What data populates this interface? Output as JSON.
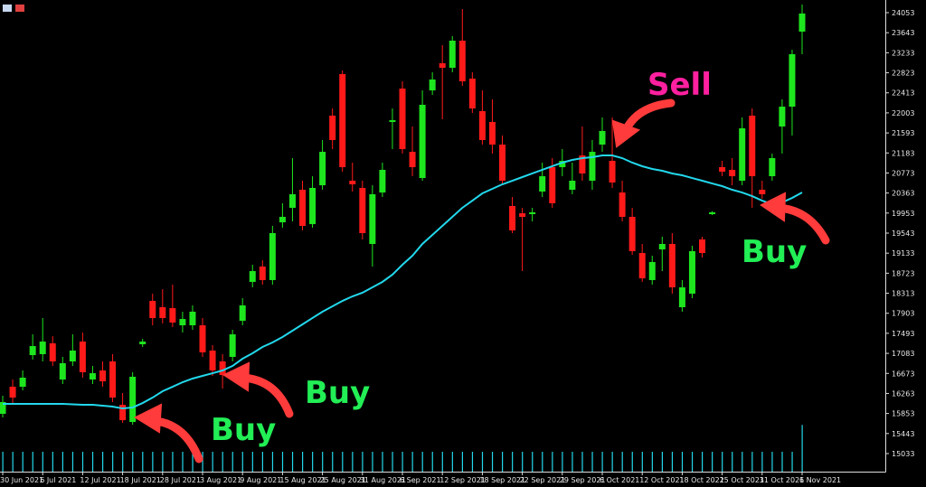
{
  "chart_data": {
    "type": "candlestick",
    "categories": [
      "30 Jun 2021",
      null,
      null,
      null,
      "6 Jul 2021",
      null,
      null,
      null,
      "12 Jul 2021",
      null,
      null,
      null,
      "18 Jul 2021",
      null,
      null,
      null,
      "28 Jul 2021",
      null,
      null,
      null,
      "3 Aug 2021",
      null,
      null,
      null,
      "9 Aug 2021",
      null,
      null,
      null,
      "15 Aug 2021",
      null,
      null,
      null,
      "25 Aug 2021",
      null,
      null,
      null,
      "31 Aug 2021",
      null,
      null,
      null,
      "6 Sep 2021",
      null,
      null,
      null,
      "12 Sep 2021",
      null,
      null,
      null,
      "18 Sep 2021",
      null,
      null,
      null,
      "22 Sep 2021",
      null,
      null,
      null,
      "29 Sep 2021",
      null,
      null,
      null,
      "6 Oct 2021",
      null,
      null,
      null,
      "12 Oct 2021",
      null,
      null,
      null,
      "18 Oct 2021",
      null,
      null,
      null,
      "25 Oct 2021",
      null,
      null,
      null,
      "31 Oct 2021",
      null,
      null,
      null,
      "6 Nov 2021"
    ],
    "open": [
      15846,
      16400,
      16400,
      17047,
      17066,
      17288,
      16548,
      16918,
      17324,
      16548,
      16733,
      16918,
      16030,
      15679,
      17269,
      18156,
      18027,
      18008,
      17657,
      17657,
      17657,
      17140,
      16918,
      17010,
      17750,
      18545,
      18859,
      18582,
      19764,
      20060,
      20430,
      19727,
      20522,
      21946,
      22796,
      20615,
      20467,
      19321,
      20374,
      21816,
      22500,
      21206,
      20670,
      22463,
      23018,
      22925,
      23480,
      22704,
      22038,
      21816,
      21354,
      20097,
      19949,
      19931,
      20393,
      20892,
      20892,
      20430,
      21132,
      20615,
      21354,
      21021,
      20374,
      19875,
      19136,
      18582,
      19210,
      19321,
      18027,
      18304,
      19413,
      19931,
      20892,
      20837,
      20615,
      21946,
      20430,
      20707,
      21724,
      22130,
      23665
    ],
    "high": [
      16215,
      16548,
      16733,
      17472,
      17805,
      17435,
      17010,
      17472,
      17509,
      16825,
      16918,
      17066,
      16271,
      16696,
      17380,
      18304,
      18397,
      18489,
      17935,
      18064,
      17805,
      17251,
      17066,
      17565,
      18212,
      18896,
      18988,
      19691,
      20153,
      21077,
      20615,
      20707,
      21447,
      22093,
      22870,
      20985,
      20615,
      20522,
      20985,
      22093,
      22648,
      21724,
      22463,
      22833,
      23388,
      23572,
      24127,
      22833,
      22463,
      22278,
      21539,
      20282,
      20060,
      20060,
      20985,
      21077,
      21262,
      20985,
      21724,
      21447,
      21909,
      21909,
      20615,
      20060,
      19321,
      19081,
      19469,
      19543,
      18582,
      19284,
      19469,
      19990,
      21021,
      21077,
      21909,
      22093,
      20615,
      21169,
      22278,
      23295,
      24220
    ],
    "low": [
      15772,
      16067,
      16326,
      16955,
      16918,
      16825,
      16456,
      16825,
      16585,
      16456,
      16400,
      16086,
      15661,
      15624,
      17214,
      17657,
      17694,
      17620,
      17509,
      17565,
      17010,
      16622,
      16363,
      16918,
      17657,
      18434,
      18489,
      18489,
      19654,
      19783,
      19598,
      19654,
      20430,
      21262,
      20800,
      20393,
      19413,
      18859,
      20282,
      21262,
      21169,
      20707,
      20615,
      22371,
      21872,
      22833,
      22556,
      22001,
      21354,
      21169,
      20522,
      19543,
      18766,
      19783,
      20282,
      20060,
      20707,
      20338,
      20615,
      20430,
      21206,
      20467,
      19783,
      19099,
      18545,
      18489,
      18766,
      18304,
      17935,
      18212,
      19044,
      19912,
      20707,
      20522,
      20522,
      20060,
      20245,
      20615,
      21169,
      21539,
      23203
    ],
    "close": [
      16086,
      16178,
      16585,
      17232,
      17324,
      16918,
      16881,
      17140,
      16696,
      16677,
      16511,
      16178,
      15716,
      16604,
      17324,
      17805,
      17805,
      17713,
      17786,
      17935,
      17103,
      16733,
      16640,
      17472,
      18064,
      18766,
      18582,
      19543,
      19875,
      20338,
      19691,
      20467,
      21206,
      21447,
      20892,
      20541,
      19543,
      20338,
      20837,
      21853,
      21262,
      20892,
      22168,
      22685,
      22925,
      23480,
      22648,
      22093,
      21447,
      21354,
      20615,
      19598,
      19875,
      19968,
      20707,
      20153,
      21021,
      20615,
      20763,
      21206,
      21632,
      20578,
      19875,
      19173,
      18618,
      18951,
      19321,
      18433,
      18433,
      19173,
      19136,
      19968,
      20800,
      20707,
      21687,
      20707,
      20338,
      21077,
      22130,
      23203,
      24035
    ],
    "up_color": "#1ee61e",
    "down_color": "#ff1a1a",
    "moving_average": {
      "color": "#22d8ec",
      "values": [
        16049,
        16049,
        16049,
        16049,
        16049,
        16049,
        16049,
        16040,
        16030,
        16030,
        16012,
        15993,
        15956,
        15975,
        16067,
        16178,
        16308,
        16400,
        16493,
        16567,
        16622,
        16677,
        16733,
        16825,
        16973,
        17084,
        17214,
        17306,
        17417,
        17546,
        17676,
        17806,
        17935,
        18045,
        18156,
        18249,
        18323,
        18434,
        18545,
        18693,
        18896,
        19081,
        19321,
        19506,
        19691,
        19876,
        20061,
        20208,
        20356,
        20449,
        20541,
        20615,
        20689,
        20763,
        20837,
        20911,
        20985,
        21040,
        21077,
        21095,
        21132,
        21132,
        21077,
        20985,
        20911,
        20855,
        20818,
        20763,
        20726,
        20670,
        20615,
        20559,
        20504,
        20430,
        20374,
        20300,
        20208,
        20134,
        20171,
        20263,
        20374
      ]
    },
    "volume": {
      "color": "#22d8ec",
      "vlim": [
        0,
        100
      ],
      "values": [
        20,
        20,
        20,
        20,
        20,
        20,
        20,
        20,
        20,
        20,
        20,
        20,
        20,
        20,
        20,
        20,
        20,
        20,
        20,
        20,
        20,
        20,
        20,
        20,
        20,
        20,
        20,
        20,
        20,
        20,
        20,
        20,
        20,
        20,
        20,
        20,
        20,
        20,
        20,
        20,
        20,
        20,
        20,
        20,
        20,
        20,
        20,
        20,
        20,
        20,
        20,
        20,
        20,
        20,
        20,
        20,
        20,
        20,
        20,
        20,
        20,
        20,
        20,
        20,
        20,
        20,
        20,
        20,
        20,
        20,
        20,
        20,
        20,
        20,
        20,
        20,
        20,
        20,
        20,
        20,
        47
      ]
    },
    "ylim": [
      14663,
      24312
    ],
    "yticks": [
      15033,
      15443,
      15853,
      16263,
      16673,
      17083,
      17493,
      17903,
      18313,
      18723,
      19133,
      19543,
      19953,
      20363,
      20773,
      21183,
      21593,
      22003,
      22413,
      22823,
      23233,
      23643,
      24053
    ],
    "annotations": [
      {
        "text": "Buy",
        "color": "#22ee55"
      },
      {
        "text": "Buy",
        "color": "#22ee55"
      },
      {
        "text": "Sell",
        "color": "#ff20a0"
      },
      {
        "text": "Buy",
        "color": "#22ee55"
      }
    ]
  }
}
